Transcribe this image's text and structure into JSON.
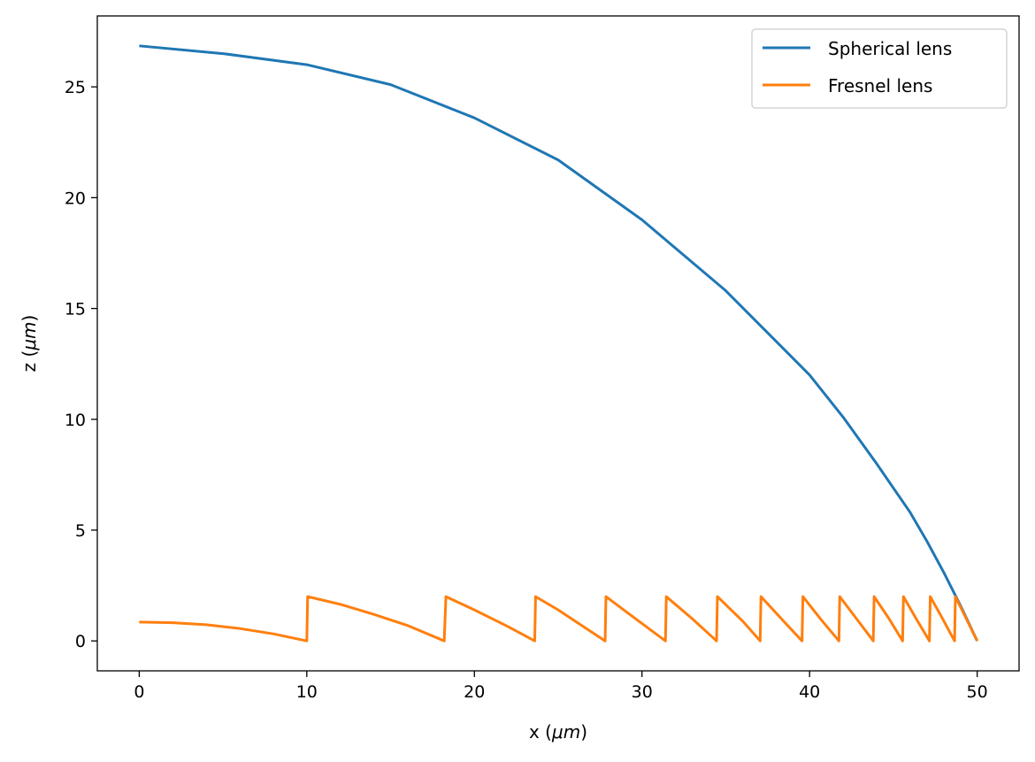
{
  "chart_data": {
    "type": "line",
    "title": "",
    "xlabel_prefix": "x (",
    "xlabel_unit": "μm",
    "xlabel_suffix": ")",
    "ylabel_prefix": "z (",
    "ylabel_unit": "μm",
    "ylabel_suffix": ")",
    "xlim": [
      -2.5,
      52.5
    ],
    "ylim": [
      -1.35,
      28.2
    ],
    "xticks": [
      0,
      10,
      20,
      30,
      40,
      50
    ],
    "yticks": [
      0,
      5,
      10,
      15,
      20,
      25
    ],
    "grid": false,
    "legend_position": "top-right",
    "series": [
      {
        "name": "Spherical lens",
        "color": "#1f77b4",
        "x": [
          0,
          5,
          10,
          15,
          20,
          25,
          30,
          35,
          40,
          42,
          44,
          46,
          47,
          48,
          49,
          50
        ],
        "y": [
          26.85,
          26.5,
          26.0,
          25.1,
          23.6,
          21.7,
          19.0,
          15.8,
          12.0,
          10.1,
          8.0,
          5.8,
          4.5,
          3.1,
          1.6,
          0.0
        ]
      },
      {
        "name": "Fresnel lens",
        "color": "#ff7f0e",
        "x": [
          0,
          2,
          4,
          6,
          8,
          10,
          10.05,
          12,
          14,
          16,
          18.2,
          18.3,
          20,
          22,
          23.6,
          23.65,
          25,
          27.8,
          27.85,
          29,
          31.4,
          31.45,
          33,
          34.45,
          34.5,
          36,
          37.05,
          37.1,
          38.5,
          39.55,
          39.6,
          40.7,
          41.75,
          41.8,
          42.8,
          43.8,
          43.85,
          44.7,
          45.55,
          45.6,
          46.4,
          47.15,
          47.2,
          47.9,
          48.65,
          48.7,
          50
        ],
        "y": [
          0.85,
          0.82,
          0.73,
          0.56,
          0.32,
          0.0,
          2.0,
          1.65,
          1.2,
          0.7,
          0.0,
          2.0,
          1.4,
          0.65,
          0.0,
          2.0,
          1.4,
          0.0,
          2.0,
          1.35,
          0.0,
          2.0,
          1.0,
          0.0,
          2.0,
          0.9,
          0.0,
          2.0,
          0.85,
          0.0,
          2.0,
          0.95,
          0.0,
          2.0,
          1.0,
          0.0,
          2.0,
          1.05,
          0.0,
          2.0,
          0.95,
          0.0,
          2.0,
          1.05,
          0.0,
          2.0,
          0.0
        ]
      }
    ]
  }
}
